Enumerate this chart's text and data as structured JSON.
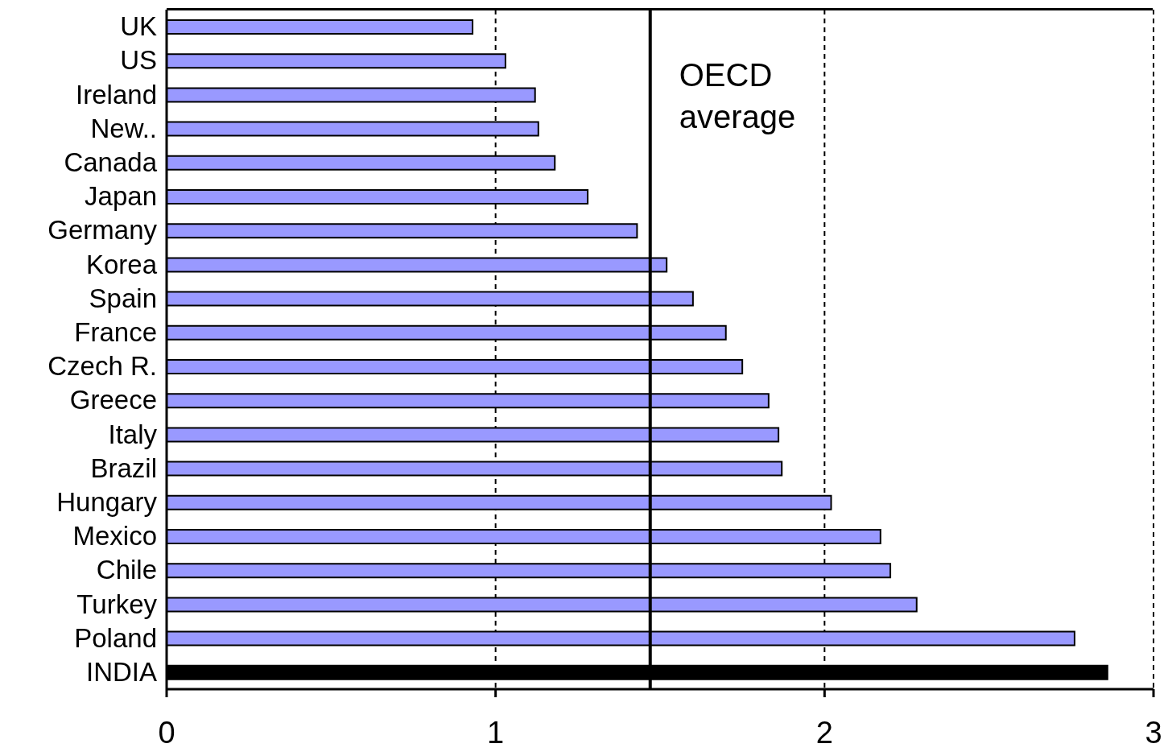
{
  "chart_data": {
    "type": "bar",
    "orientation": "horizontal",
    "categories": [
      "UK",
      "US",
      "Ireland",
      "New..",
      "Canada",
      "Japan",
      "Germany",
      "Korea",
      "Spain",
      "France",
      "Czech R.",
      "Greece",
      "Italy",
      "Brazil",
      "Hungary",
      "Mexico",
      "Chile",
      "Turkey",
      "Poland",
      "INDIA"
    ],
    "values": [
      0.93,
      1.03,
      1.12,
      1.13,
      1.18,
      1.28,
      1.43,
      1.52,
      1.6,
      1.7,
      1.75,
      1.83,
      1.86,
      1.87,
      2.02,
      2.17,
      2.2,
      2.28,
      2.76,
      2.86
    ],
    "colors": [
      "#9999ff",
      "#9999ff",
      "#9999ff",
      "#9999ff",
      "#9999ff",
      "#9999ff",
      "#9999ff",
      "#9999ff",
      "#9999ff",
      "#9999ff",
      "#9999ff",
      "#9999ff",
      "#9999ff",
      "#9999ff",
      "#9999ff",
      "#9999ff",
      "#9999ff",
      "#9999ff",
      "#9999ff",
      "#000000"
    ],
    "xlim": [
      0,
      3
    ],
    "xticks": [
      0,
      1,
      2,
      3
    ],
    "grid": "x",
    "ref_lines": [
      {
        "axis": "x",
        "value": 1.47,
        "label": "OECD average",
        "color": "#000000",
        "line_style": "solid"
      }
    ]
  }
}
